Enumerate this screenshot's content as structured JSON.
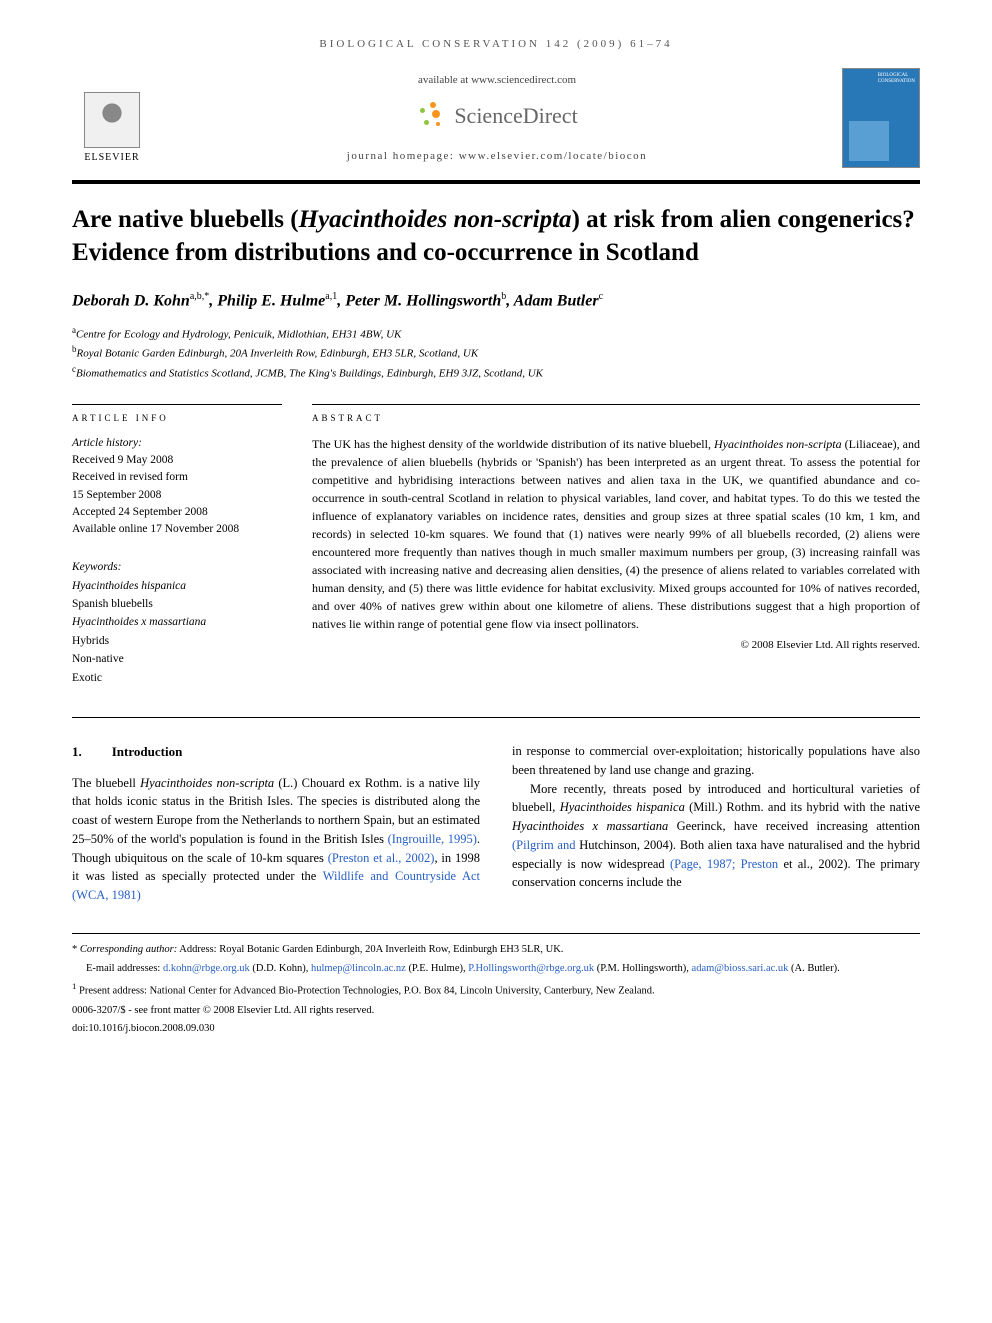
{
  "journal_header": "BIOLOGICAL CONSERVATION 142 (2009) 61–74",
  "header": {
    "available": "available at www.sciencedirect.com",
    "sd_brand": "ScienceDirect",
    "homepage": "journal homepage: www.elsevier.com/locate/biocon",
    "elsevier": "ELSEVIER",
    "cover_label_line1": "BIOLOGICAL",
    "cover_label_line2": "CONSERVATION"
  },
  "title": {
    "part1": "Are native bluebells (",
    "italic1": "Hyacinthoides non-scripta",
    "part2": ") at risk from alien congenerics? Evidence from distributions and co-occurrence in Scotland"
  },
  "authors_html": "Deborah D. Kohn<sup>a,b,*</sup>, Philip E. Hulme<sup>a,1</sup>, Peter M. Hollingsworth<sup>b</sup>, Adam Butler<sup>c</sup>",
  "affiliations": [
    {
      "sup": "a",
      "text": "Centre for Ecology and Hydrology, Penicuik, Midlothian, EH31 4BW, UK"
    },
    {
      "sup": "b",
      "text": "Royal Botanic Garden Edinburgh, 20A Inverleith Row, Edinburgh, EH3 5LR, Scotland, UK"
    },
    {
      "sup": "c",
      "text": "Biomathematics and Statistics Scotland, JCMB, The King's Buildings, Edinburgh, EH9 3JZ, Scotland, UK"
    }
  ],
  "article_info_label": "ARTICLE INFO",
  "abstract_label": "ABSTRACT",
  "history": {
    "label": "Article history:",
    "lines": [
      "Received 9 May 2008",
      "Received in revised form",
      "15 September 2008",
      "Accepted 24 September 2008",
      "Available online 17 November 2008"
    ]
  },
  "keywords": {
    "label": "Keywords:",
    "items": [
      {
        "text": "Hyacinthoides hispanica",
        "italic": true
      },
      {
        "text": "Spanish bluebells",
        "italic": false
      },
      {
        "text": "Hyacinthoides x massartiana",
        "italic": true
      },
      {
        "text": "Hybrids",
        "italic": false
      },
      {
        "text": "Non-native",
        "italic": false
      },
      {
        "text": "Exotic",
        "italic": false
      }
    ]
  },
  "abstract": {
    "p1a": "The UK has the highest density of the worldwide distribution of its native bluebell, ",
    "p1i1": "Hyacinthoides non-scripta",
    "p1b": " (Liliaceae), and the prevalence of alien bluebells (hybrids or 'Spanish') has been interpreted as an urgent threat. To assess the potential for competitive and hybridising interactions between natives and alien taxa in the UK, we quantified abundance and co-occurrence in south-central Scotland in relation to physical variables, land cover, and habitat types. To do this we tested the influence of explanatory variables on incidence rates, densities and group sizes at three spatial scales (10 km, 1 km, and records) in selected 10-km squares. We found that (1) natives were nearly 99% of all bluebells recorded, (2) aliens were encountered more frequently than natives though in much smaller maximum numbers per group, (3) increasing rainfall was associated with increasing native and decreasing alien densities, (4) the presence of aliens related to variables correlated with human density, and (5) there was little evidence for habitat exclusivity. Mixed groups accounted for 10% of natives recorded, and over 40% of natives grew within about one kilometre of aliens. These distributions suggest that a high proportion of natives lie within range of potential gene flow via insect pollinators."
  },
  "copyright": "© 2008 Elsevier Ltd. All rights reserved.",
  "section1": {
    "num": "1.",
    "title": "Introduction"
  },
  "body": {
    "col1": {
      "p1a": "The bluebell ",
      "p1i1": "Hyacinthoides non-scripta",
      "p1b": " (L.) Chouard ex Rothm. is a native lily that holds iconic status in the British Isles. The species is distributed along the coast of western Europe from the Netherlands to northern Spain, but an estimated 25–50% of the world's population is found in the British Isles ",
      "p1link1": "(Ingrouille, 1995)",
      "p1c": ". Though ubiquitous on the scale of 10-km squares ",
      "p1link2": "(Preston et al., 2002)",
      "p1d": ", in 1998 it was listed as specially protected under the ",
      "p1link3": "Wildlife and Countryside Act (WCA, 1981)"
    },
    "col2": {
      "p1": "in response to commercial over-exploitation; historically populations have also been threatened by land use change and grazing.",
      "p2a": "More recently, threats posed by introduced and horticultural varieties of bluebell, ",
      "p2i1": "Hyacinthoides hispanica",
      "p2b": " (Mill.) Rothm. and its hybrid with the native ",
      "p2i2": "Hyacinthoides x massartiana",
      "p2c": " Geerinck, have received increasing attention ",
      "p2link1": "(Pilgrim and",
      "p2d": " Hutchinson, 2004). Both alien taxa have naturalised and the hybrid especially is now widespread ",
      "p2link2": "(Page, 1987; Preston",
      "p2e": " et al., 2002). The primary conservation concerns include the"
    }
  },
  "footnotes": {
    "corr_label": "* ",
    "corr_italic": "Corresponding author:",
    "corr_text": " Address: Royal Botanic Garden Edinburgh, 20A Inverleith Row, Edinburgh EH3 5LR, UK.",
    "email_label": "E-mail addresses: ",
    "emails": [
      {
        "addr": "d.kohn@rbge.org.uk",
        "name": " (D.D. Kohn), "
      },
      {
        "addr": "hulmep@lincoln.ac.nz",
        "name": " (P.E. Hulme), "
      },
      {
        "addr": "P.Hollingsworth@rbge.org.uk",
        "name": " (P.M. Hollingsworth), "
      },
      {
        "addr": "adam@bioss.sari.ac.uk",
        "name": " (A. Butler)."
      }
    ],
    "present": "Present address: National Center for Advanced Bio-Protection Technologies, P.O. Box 84, Lincoln University, Canterbury, New Zealand.",
    "issn": "0006-3207/$ - see front matter © 2008 Elsevier Ltd. All rights reserved.",
    "doi": "doi:10.1016/j.biocon.2008.09.030"
  },
  "colors": {
    "link": "#2860c4",
    "cover": "#2878b8",
    "sd_orange": "#f7941d",
    "sd_green": "#8cc63f"
  }
}
